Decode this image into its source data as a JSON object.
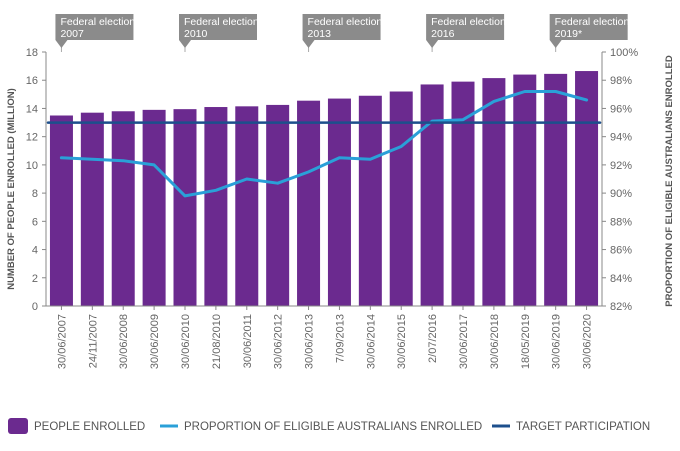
{
  "chart_data": {
    "type": "bar",
    "categories": [
      "30/06/2007",
      "24/11/2007",
      "30/06/2008",
      "30/06/2009",
      "30/06/2010",
      "21/08/2010",
      "30/06/2011",
      "30/06/2012",
      "30/06/2013",
      "7/09/2013",
      "30/06/2014",
      "30/06/2015",
      "2/07/2016",
      "30/06/2017",
      "30/06/2018",
      "18/05/2019",
      "30/06/2019",
      "30/06/2020"
    ],
    "series": [
      {
        "name": "PEOPLE ENROLLED",
        "kind": "bar",
        "axis": "left",
        "color": "#6b2a8f",
        "values": [
          13.5,
          13.7,
          13.8,
          13.9,
          13.95,
          14.1,
          14.15,
          14.25,
          14.55,
          14.7,
          14.9,
          15.2,
          15.7,
          15.9,
          16.15,
          16.4,
          16.45,
          16.65
        ]
      },
      {
        "name": "PROPORTION OF ELIGIBLE AUSTRALIANS ENROLLED",
        "kind": "line",
        "axis": "right",
        "color": "#2aa0d8",
        "values": [
          92.5,
          92.4,
          92.3,
          92.0,
          89.8,
          90.2,
          91.0,
          90.7,
          91.5,
          92.5,
          92.4,
          93.3,
          95.1,
          95.2,
          96.5,
          97.2,
          97.2,
          96.6
        ]
      },
      {
        "name": "TARGET PARTICIPATION",
        "kind": "line",
        "axis": "right",
        "color": "#1d4f8c",
        "values": [
          95,
          95,
          95,
          95,
          95,
          95,
          95,
          95,
          95,
          95,
          95,
          95,
          95,
          95,
          95,
          95,
          95,
          95
        ]
      }
    ],
    "ylabel": "NUMBER OF PEOPLE ENROLLED (MILLION)",
    "ylabel_right": "PROPORTION OF ELIGIBLE AUSTRALIANS ENROLLED",
    "ylim": [
      0,
      18
    ],
    "yticks": [
      0,
      2,
      4,
      6,
      8,
      10,
      12,
      14,
      16,
      18
    ],
    "ylim_right": [
      82,
      100
    ],
    "yticks_right": [
      "82%",
      "84%",
      "86%",
      "88%",
      "90%",
      "92%",
      "94%",
      "96%",
      "98%",
      "100%"
    ],
    "annotations": [
      {
        "line1": "Federal election",
        "line2": "2007",
        "category_index": 0
      },
      {
        "line1": "Federal election",
        "line2": "2010",
        "category_index": 4
      },
      {
        "line1": "Federal election",
        "line2": "2013",
        "category_index": 8
      },
      {
        "line1": "Federal election",
        "line2": "2016",
        "category_index": 12
      },
      {
        "line1": "Federal election",
        "line2": "2019*",
        "category_index": 16
      }
    ],
    "legend_position": "bottom",
    "grid": false
  }
}
